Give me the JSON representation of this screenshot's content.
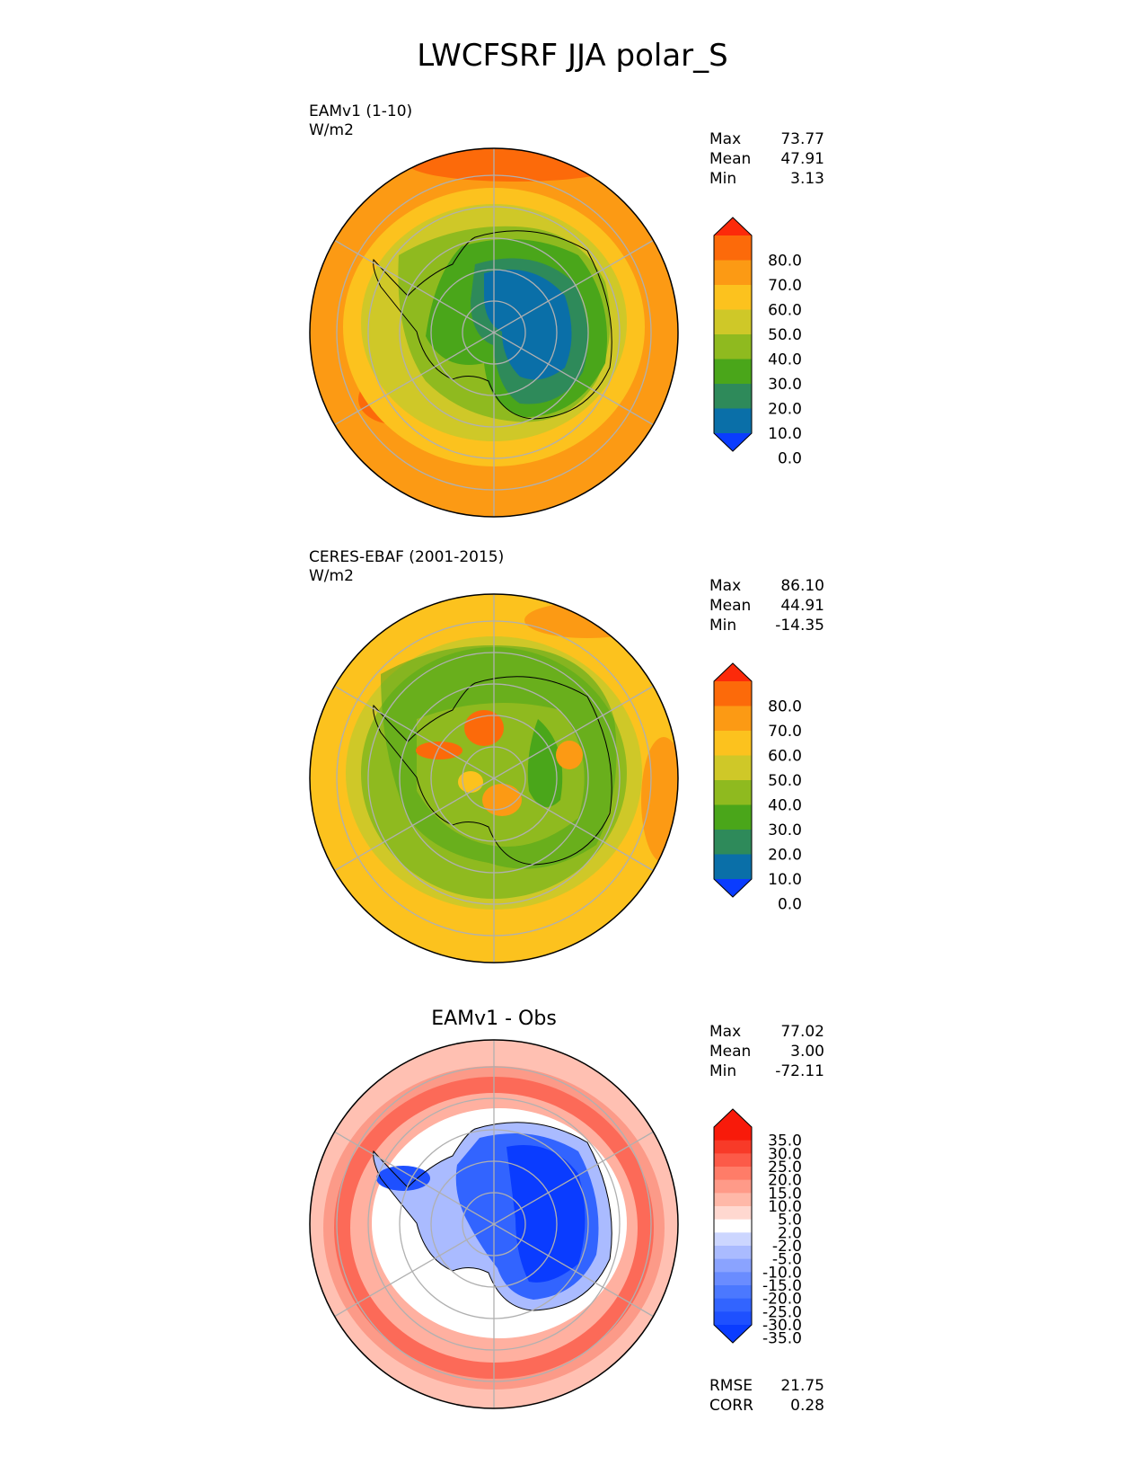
{
  "title": "LWCFSRF JJA polar_S",
  "panels": [
    {
      "name": "test",
      "label": "EAMv1 (1-10)",
      "units": "W/m2",
      "stats": [
        {
          "label": "Max",
          "value": "73.77"
        },
        {
          "label": "Mean",
          "value": "47.91"
        },
        {
          "label": "Min",
          "value": "3.13"
        }
      ]
    },
    {
      "name": "reference",
      "label": "CERES-EBAF (2001-2015)",
      "units": "W/m2",
      "stats": [
        {
          "label": "Max",
          "value": "86.10"
        },
        {
          "label": "Mean",
          "value": "44.91"
        },
        {
          "label": "Min",
          "value": "-14.35"
        }
      ]
    },
    {
      "name": "difference",
      "title": "EAMv1 - Obs",
      "stats": [
        {
          "label": "Max",
          "value": "77.02"
        },
        {
          "label": "Mean",
          "value": "3.00"
        },
        {
          "label": "Min",
          "value": "-72.11"
        }
      ],
      "metrics": [
        {
          "label": "RMSE",
          "value": "21.75"
        },
        {
          "label": "CORR",
          "value": "0.28"
        }
      ]
    }
  ],
  "chart_data": [
    {
      "type": "heatmap",
      "projection": "south polar stereographic",
      "title": "EAMv1 (1-10)",
      "units": "W/m2",
      "colorbar": {
        "ticks": [
          "80.0",
          "70.0",
          "60.0",
          "50.0",
          "40.0",
          "30.0",
          "20.0",
          "10.0",
          "0.0"
        ],
        "levels": [
          0,
          10,
          20,
          30,
          40,
          50,
          60,
          70,
          80
        ],
        "colors": [
          "#0a3cff",
          "#0a6fa8",
          "#2e8a5a",
          "#4aa61a",
          "#8fba1f",
          "#cfc828",
          "#fcc21e",
          "#fc9a14",
          "#fc6a0a",
          "#fc2a0a"
        ]
      },
      "stats": {
        "max": 73.77,
        "mean": 47.91,
        "min": 3.13
      }
    },
    {
      "type": "heatmap",
      "projection": "south polar stereographic",
      "title": "CERES-EBAF (2001-2015)",
      "units": "W/m2",
      "colorbar": {
        "ticks": [
          "80.0",
          "70.0",
          "60.0",
          "50.0",
          "40.0",
          "30.0",
          "20.0",
          "10.0",
          "0.0"
        ],
        "levels": [
          0,
          10,
          20,
          30,
          40,
          50,
          60,
          70,
          80
        ],
        "colors": [
          "#0a3cff",
          "#0a6fa8",
          "#2e8a5a",
          "#4aa61a",
          "#8fba1f",
          "#cfc828",
          "#fcc21e",
          "#fc9a14",
          "#fc6a0a",
          "#fc2a0a"
        ]
      },
      "stats": {
        "max": 86.1,
        "mean": 44.91,
        "min": -14.35
      }
    },
    {
      "type": "heatmap",
      "projection": "south polar stereographic",
      "title": "EAMv1 - Obs",
      "colorbar": {
        "ticks": [
          "35.0",
          "30.0",
          "25.0",
          "20.0",
          "15.0",
          "10.0",
          "5.0",
          "2.0",
          "-2.0",
          "-5.0",
          "-10.0",
          "-15.0",
          "-20.0",
          "-25.0",
          "-30.0",
          "-35.0"
        ],
        "levels": [
          -35,
          -30,
          -25,
          -20,
          -15,
          -10,
          -5,
          -2,
          2,
          5,
          10,
          15,
          20,
          25,
          30,
          35
        ],
        "colors": [
          "#0a3cff",
          "#1e50ff",
          "#3264ff",
          "#4b78ff",
          "#6a8cff",
          "#8aa3ff",
          "#aabbff",
          "#ccd6ff",
          "#ffffff",
          "#ffd8d0",
          "#ffb8a8",
          "#ff9a88",
          "#ff7c68",
          "#fc5a48",
          "#f83a28",
          "#f81a0a",
          "#f81a0a"
        ]
      },
      "stats": {
        "max": 77.02,
        "mean": 3.0,
        "min": -72.11
      },
      "metrics": {
        "rmse": 21.75,
        "corr": 0.28
      }
    }
  ]
}
